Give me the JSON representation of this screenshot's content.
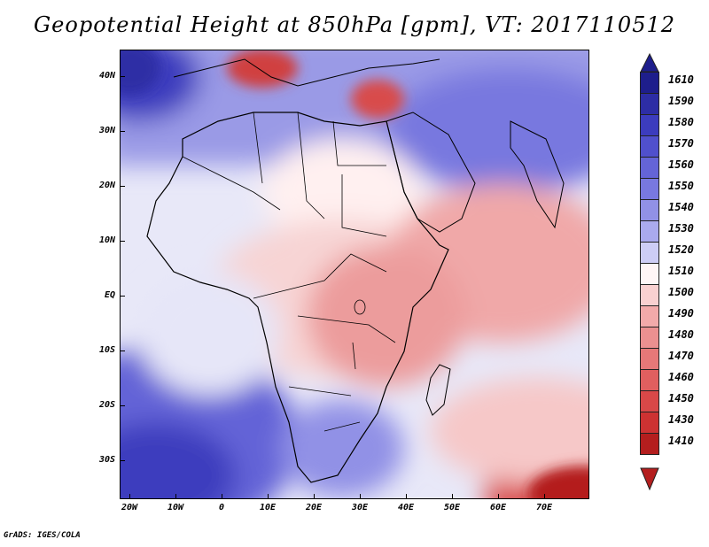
{
  "title": "Geopotential Height at 850hPa [gpm], VT: 2017110512",
  "footer": "GrADS: IGES/COLA",
  "map": {
    "region": "Africa and Indian Ocean",
    "lon_range": [
      -22,
      80
    ],
    "lat_range": [
      -37,
      46
    ],
    "lat_labels": [
      {
        "lat": 40,
        "label": "40N"
      },
      {
        "lat": 30,
        "label": "30N"
      },
      {
        "lat": 20,
        "label": "20N"
      },
      {
        "lat": 10,
        "label": "10N"
      },
      {
        "lat": 0,
        "label": "EQ"
      },
      {
        "lat": -10,
        "label": "10S"
      },
      {
        "lat": -20,
        "label": "20S"
      },
      {
        "lat": -30,
        "label": "30S"
      }
    ],
    "lon_labels": [
      {
        "lon": -20,
        "label": "20W"
      },
      {
        "lon": -10,
        "label": "10W"
      },
      {
        "lon": 0,
        "label": "0"
      },
      {
        "lon": 10,
        "label": "10E"
      },
      {
        "lon": 20,
        "label": "20E"
      },
      {
        "lon": 30,
        "label": "30E"
      },
      {
        "lon": 40,
        "label": "40E"
      },
      {
        "lon": 50,
        "label": "50E"
      },
      {
        "lon": 60,
        "label": "60E"
      },
      {
        "lon": 70,
        "label": "70E"
      }
    ]
  },
  "legend": {
    "levels": [
      {
        "label": "1610",
        "color": "#1e1e8c"
      },
      {
        "label": "1590",
        "color": "#2d2da5"
      },
      {
        "label": "1580",
        "color": "#3c3cbe"
      },
      {
        "label": "1570",
        "color": "#5050cd"
      },
      {
        "label": "1560",
        "color": "#6464d7"
      },
      {
        "label": "1550",
        "color": "#7878df"
      },
      {
        "label": "1540",
        "color": "#9191e6"
      },
      {
        "label": "1530",
        "color": "#aaaaee"
      },
      {
        "label": "1520",
        "color": "#cdcdf5"
      },
      {
        "label": "1510",
        "color": "#fff6f6"
      },
      {
        "label": "1500",
        "color": "#f9d0d0"
      },
      {
        "label": "1490",
        "color": "#f2aaaa"
      },
      {
        "label": "1480",
        "color": "#eb9090"
      },
      {
        "label": "1470",
        "color": "#e67878"
      },
      {
        "label": "1460",
        "color": "#e05f5f"
      },
      {
        "label": "1450",
        "color": "#d94848"
      },
      {
        "label": "1430",
        "color": "#cd3232"
      },
      {
        "label": "1410",
        "color": "#b41e1e"
      }
    ],
    "top_arrow_color": "#1e1e8c",
    "bottom_arrow_color": "#b41e1e"
  }
}
